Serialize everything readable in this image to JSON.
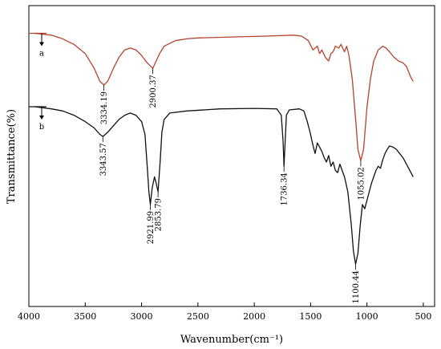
{
  "chart_data": {
    "type": "line",
    "xlabel": "Wavenumber(cm⁻¹)",
    "ylabel": "Transmittance(%)",
    "xlim": [
      4000,
      400
    ],
    "x_ticks": [
      4000,
      3500,
      3000,
      2500,
      2000,
      1500,
      1000,
      500
    ],
    "grid": false,
    "colors": {
      "a": "#b5432e",
      "b": "#111111"
    },
    "series": [
      {
        "name": "a",
        "baseline_rel": 0.05,
        "points": [
          [
            3950,
            0.05
          ],
          [
            3800,
            0.06
          ],
          [
            3700,
            0.08
          ],
          [
            3600,
            0.11
          ],
          [
            3500,
            0.16
          ],
          [
            3420,
            0.24
          ],
          [
            3370,
            0.31
          ],
          [
            3334.19,
            0.33
          ],
          [
            3300,
            0.31
          ],
          [
            3250,
            0.24
          ],
          [
            3200,
            0.18
          ],
          [
            3150,
            0.14
          ],
          [
            3100,
            0.13
          ],
          [
            3050,
            0.14
          ],
          [
            3000,
            0.17
          ],
          [
            2950,
            0.21
          ],
          [
            2900.37,
            0.24
          ],
          [
            2870,
            0.2
          ],
          [
            2840,
            0.16
          ],
          [
            2800,
            0.12
          ],
          [
            2700,
            0.09
          ],
          [
            2600,
            0.08
          ],
          [
            2500,
            0.075
          ],
          [
            2200,
            0.07
          ],
          [
            1900,
            0.065
          ],
          [
            1650,
            0.06
          ],
          [
            1580,
            0.065
          ],
          [
            1520,
            0.09
          ],
          [
            1480,
            0.14
          ],
          [
            1440,
            0.12
          ],
          [
            1420,
            0.16
          ],
          [
            1400,
            0.14
          ],
          [
            1370,
            0.18
          ],
          [
            1340,
            0.2
          ],
          [
            1320,
            0.16
          ],
          [
            1300,
            0.15
          ],
          [
            1280,
            0.12
          ],
          [
            1250,
            0.13
          ],
          [
            1230,
            0.11
          ],
          [
            1200,
            0.15
          ],
          [
            1180,
            0.12
          ],
          [
            1160,
            0.17
          ],
          [
            1130,
            0.3
          ],
          [
            1100,
            0.52
          ],
          [
            1080,
            0.68
          ],
          [
            1055.02,
            0.74
          ],
          [
            1030,
            0.68
          ],
          [
            1000,
            0.45
          ],
          [
            970,
            0.3
          ],
          [
            940,
            0.2
          ],
          [
            900,
            0.14
          ],
          [
            860,
            0.12
          ],
          [
            830,
            0.13
          ],
          [
            800,
            0.15
          ],
          [
            760,
            0.18
          ],
          [
            720,
            0.2
          ],
          [
            680,
            0.21
          ],
          [
            650,
            0.23
          ],
          [
            630,
            0.26
          ],
          [
            610,
            0.29
          ],
          [
            590,
            0.31
          ]
        ]
      },
      {
        "name": "b",
        "baseline_rel": 0.0,
        "points": [
          [
            3950,
            0.0
          ],
          [
            3800,
            0.01
          ],
          [
            3700,
            0.02
          ],
          [
            3600,
            0.04
          ],
          [
            3500,
            0.07
          ],
          [
            3420,
            0.1
          ],
          [
            3370,
            0.13
          ],
          [
            3343.57,
            0.14
          ],
          [
            3300,
            0.12
          ],
          [
            3250,
            0.09
          ],
          [
            3200,
            0.06
          ],
          [
            3150,
            0.04
          ],
          [
            3100,
            0.03
          ],
          [
            3050,
            0.04
          ],
          [
            3000,
            0.07
          ],
          [
            2970,
            0.13
          ],
          [
            2950,
            0.28
          ],
          [
            2935,
            0.4
          ],
          [
            2921.99,
            0.46
          ],
          [
            2905,
            0.38
          ],
          [
            2885,
            0.33
          ],
          [
            2870,
            0.36
          ],
          [
            2853.79,
            0.4
          ],
          [
            2835,
            0.26
          ],
          [
            2820,
            0.12
          ],
          [
            2800,
            0.06
          ],
          [
            2750,
            0.03
          ],
          [
            2600,
            0.02
          ],
          [
            2300,
            0.01
          ],
          [
            2000,
            0.008
          ],
          [
            1800,
            0.01
          ],
          [
            1760,
            0.04
          ],
          [
            1745,
            0.16
          ],
          [
            1736.34,
            0.28
          ],
          [
            1725,
            0.15
          ],
          [
            1715,
            0.04
          ],
          [
            1690,
            0.015
          ],
          [
            1600,
            0.01
          ],
          [
            1560,
            0.02
          ],
          [
            1530,
            0.07
          ],
          [
            1505,
            0.12
          ],
          [
            1480,
            0.18
          ],
          [
            1460,
            0.22
          ],
          [
            1440,
            0.17
          ],
          [
            1420,
            0.19
          ],
          [
            1400,
            0.21
          ],
          [
            1380,
            0.24
          ],
          [
            1360,
            0.26
          ],
          [
            1340,
            0.23
          ],
          [
            1320,
            0.28
          ],
          [
            1300,
            0.26
          ],
          [
            1280,
            0.3
          ],
          [
            1260,
            0.31
          ],
          [
            1240,
            0.27
          ],
          [
            1220,
            0.3
          ],
          [
            1200,
            0.33
          ],
          [
            1170,
            0.4
          ],
          [
            1140,
            0.55
          ],
          [
            1120,
            0.68
          ],
          [
            1100.44,
            0.74
          ],
          [
            1080,
            0.69
          ],
          [
            1060,
            0.56
          ],
          [
            1040,
            0.46
          ],
          [
            1020,
            0.48
          ],
          [
            1000,
            0.44
          ],
          [
            980,
            0.4
          ],
          [
            960,
            0.36
          ],
          [
            940,
            0.33
          ],
          [
            920,
            0.3
          ],
          [
            900,
            0.28
          ],
          [
            880,
            0.29
          ],
          [
            860,
            0.25
          ],
          [
            840,
            0.22
          ],
          [
            820,
            0.2
          ],
          [
            800,
            0.185
          ],
          [
            770,
            0.19
          ],
          [
            740,
            0.2
          ],
          [
            710,
            0.22
          ],
          [
            680,
            0.24
          ],
          [
            650,
            0.27
          ],
          [
            630,
            0.29
          ],
          [
            610,
            0.31
          ],
          [
            590,
            0.33
          ]
        ]
      }
    ],
    "annotations": [
      {
        "label": "3334.19",
        "series": "a",
        "x": 3334.19
      },
      {
        "label": "2900.37",
        "series": "a",
        "x": 2900.37
      },
      {
        "label": "1055.02",
        "series": "a",
        "x": 1055.02
      },
      {
        "label": "3343.57",
        "series": "b",
        "x": 3343.57
      },
      {
        "label": "2921.99",
        "series": "b",
        "x": 2921.99
      },
      {
        "label": "2853.79",
        "series": "b",
        "x": 2853.79
      },
      {
        "label": "1736.34",
        "series": "b",
        "x": 1736.34
      },
      {
        "label": "1100.44",
        "series": "b",
        "x": 1100.44
      }
    ]
  }
}
